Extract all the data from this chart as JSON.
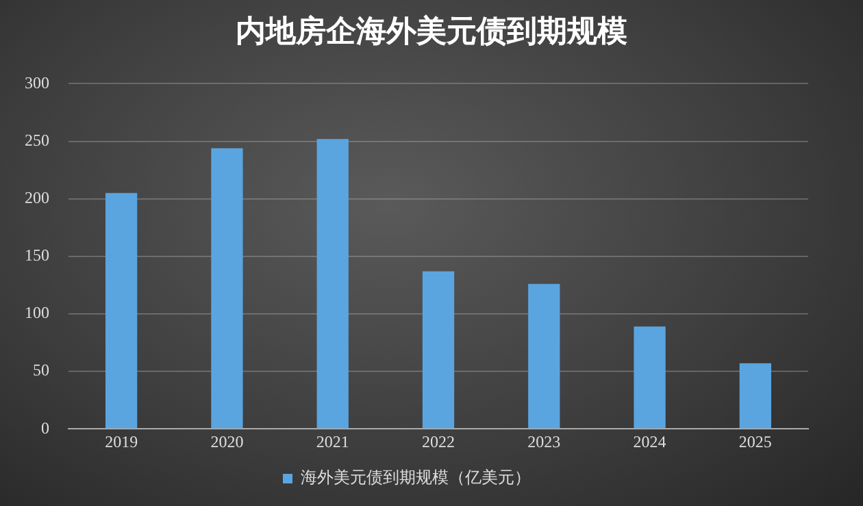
{
  "chart_data": {
    "type": "bar",
    "title": "内地房企海外美元债到期规模",
    "categories": [
      "2019",
      "2020",
      "2021",
      "2022",
      "2023",
      "2024",
      "2025"
    ],
    "series": [
      {
        "name": "海外美元债到期规模（亿美元）",
        "color": "#5aa5e0",
        "values": [
          205,
          244,
          252,
          137,
          126,
          89,
          57
        ]
      }
    ],
    "ylim": [
      0,
      300
    ],
    "yticks": [
      0,
      50,
      100,
      150,
      200,
      250,
      300
    ],
    "grid": "y",
    "legend": "bottom"
  }
}
